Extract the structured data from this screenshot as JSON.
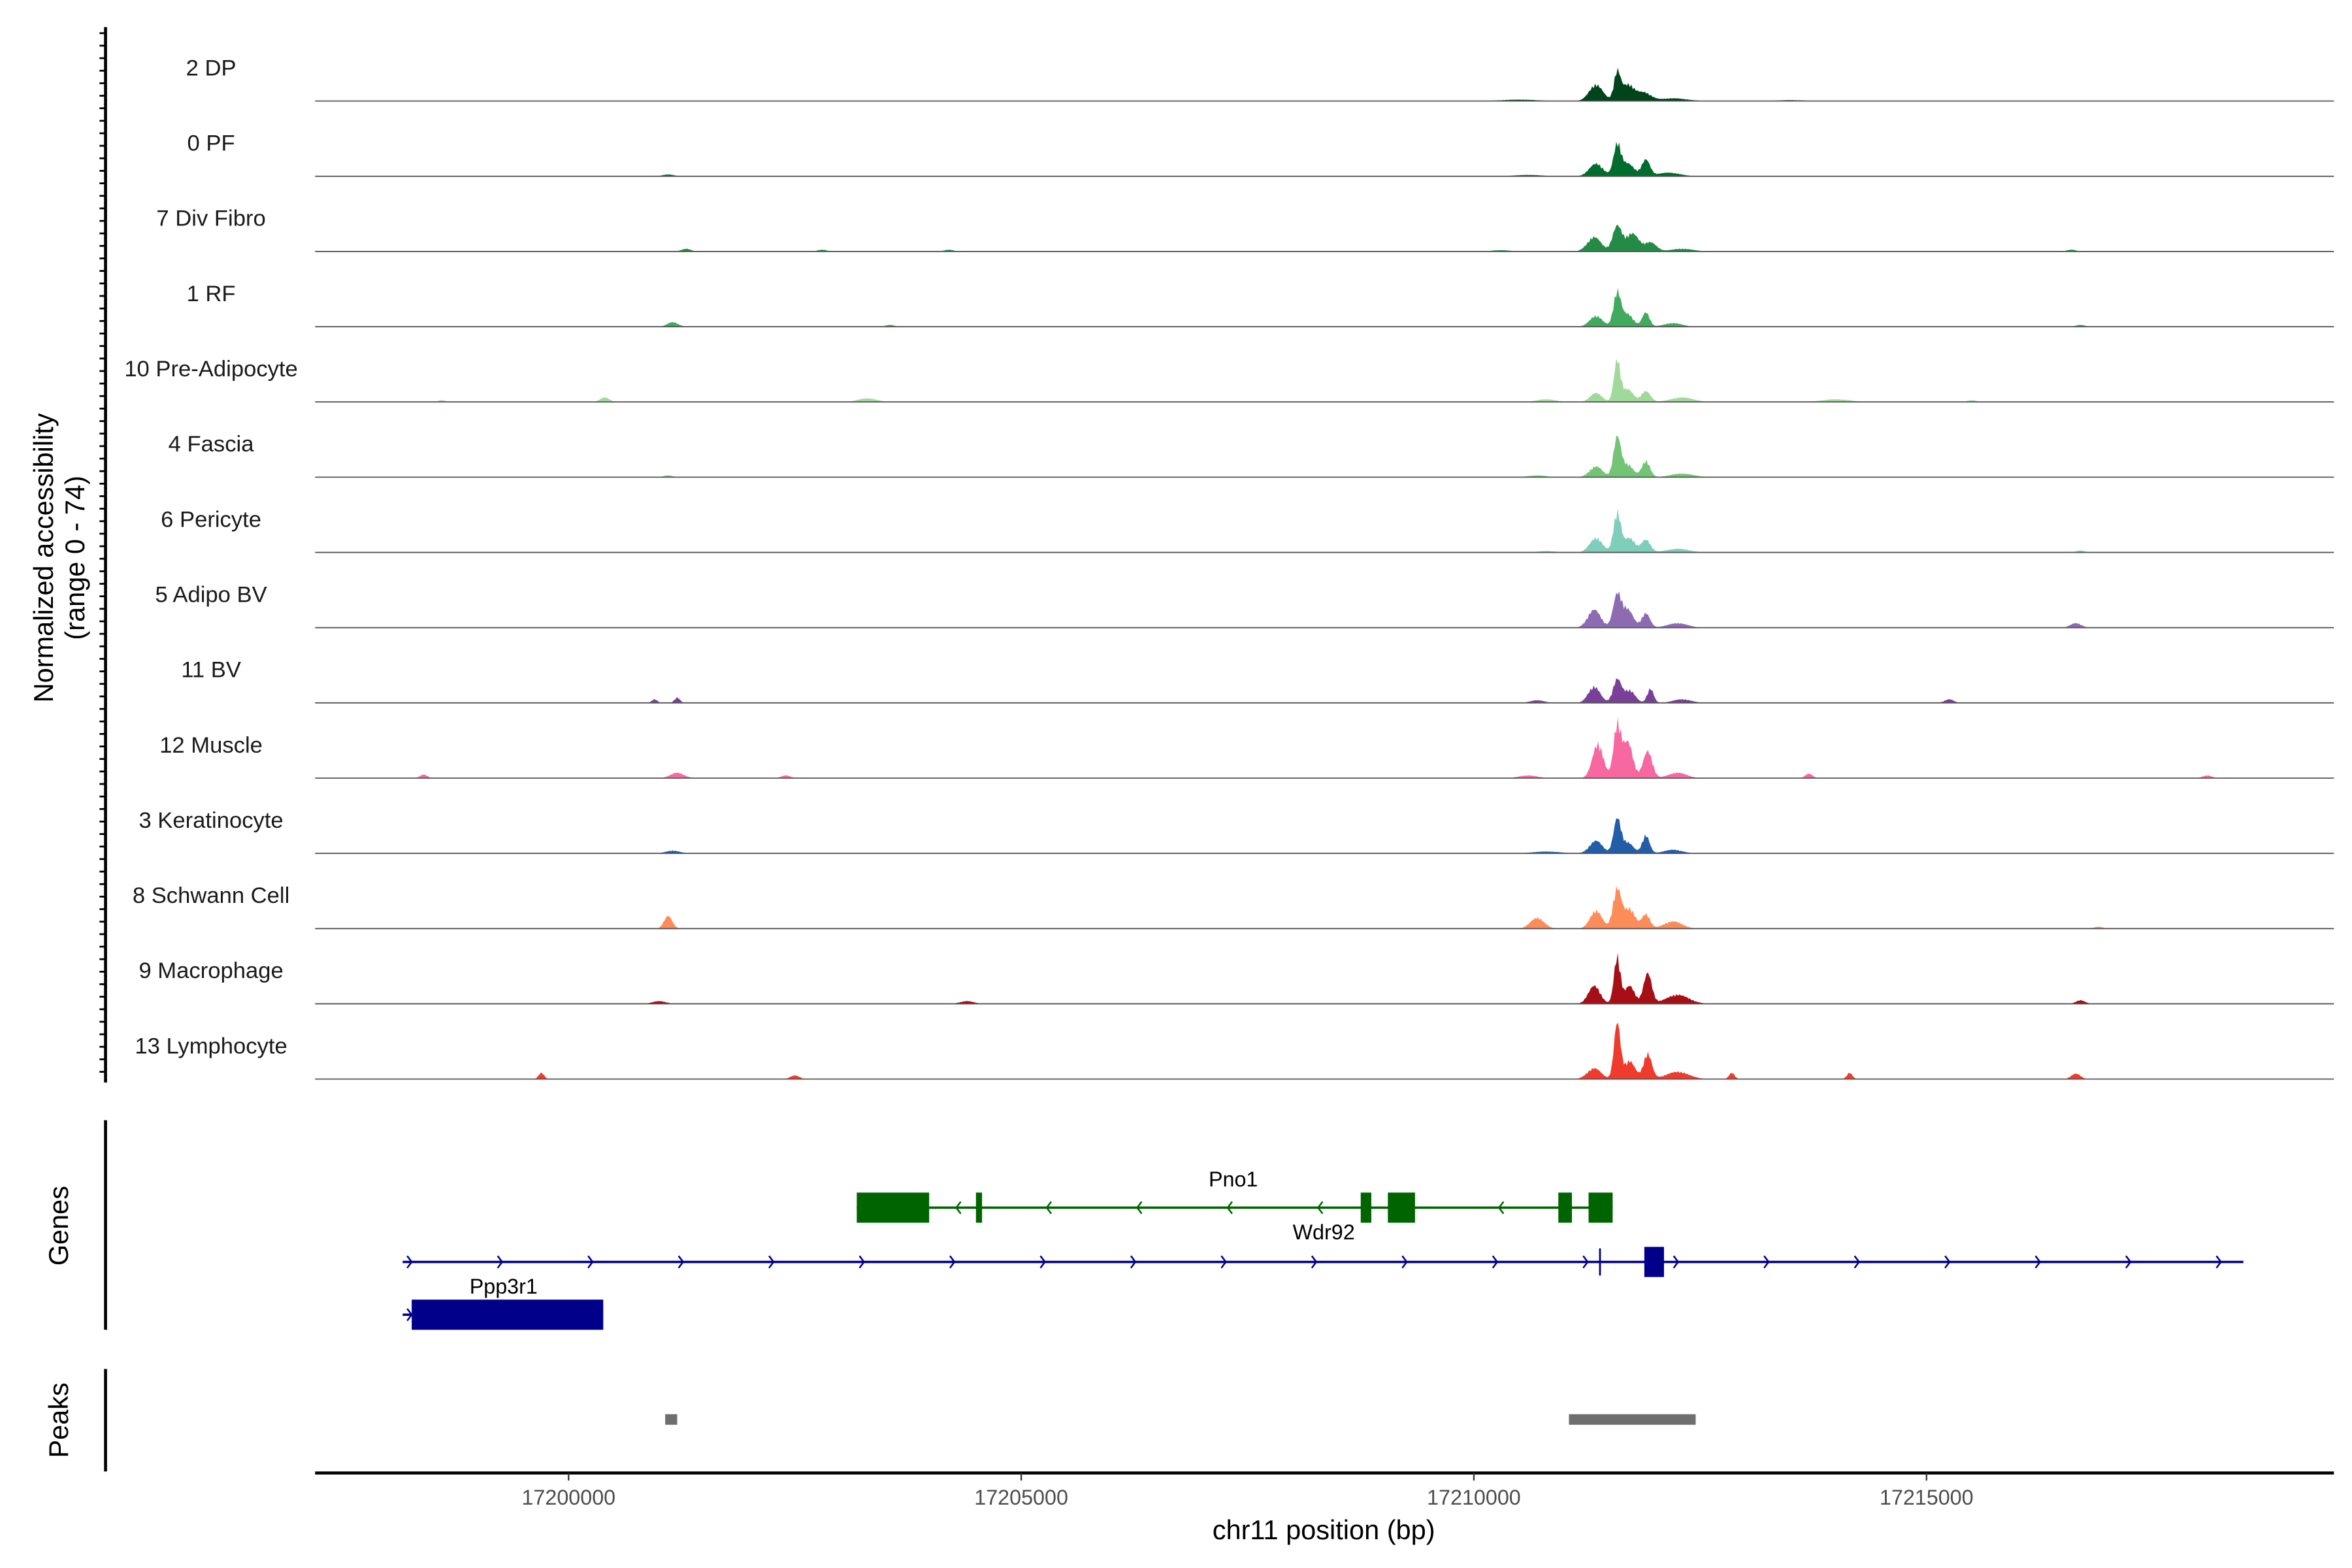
{
  "chart_data": {
    "type": "area",
    "title": "",
    "xlabel": "chr11 position (bp)",
    "ylabel": "Normalized accessibility",
    "ylabel_sub": "(range 0 - 74)",
    "ylim": [
      0,
      74
    ],
    "xlim": [
      17197200,
      17219500
    ],
    "x_ticks": [
      17200000,
      17205000,
      17210000,
      17215000
    ],
    "x_tick_labels": [
      "17200000",
      "17205000",
      "17210000",
      "17215000"
    ],
    "tracks": [
      {
        "name": "2 DP",
        "color": "#00441b",
        "bumps": [
          [
            17211350,
            18,
            150
          ],
          [
            17211583,
            30,
            70
          ],
          [
            17211700,
            18,
            140
          ],
          [
            17211880,
            9,
            150
          ],
          [
            17212200,
            3,
            300
          ],
          [
            17210500,
            1.5,
            400
          ],
          [
            17213500,
            1,
            300
          ]
        ]
      },
      {
        "name": "0 PF",
        "color": "#006d2c",
        "bumps": [
          [
            17211350,
            14,
            150
          ],
          [
            17211583,
            34,
            80
          ],
          [
            17211700,
            14,
            140
          ],
          [
            17211900,
            18,
            90
          ],
          [
            17212150,
            4,
            250
          ],
          [
            17201100,
            2,
            120
          ],
          [
            17210600,
            1.5,
            300
          ]
        ]
      },
      {
        "name": "7 Div Fibro",
        "color": "#238b45",
        "bumps": [
          [
            17211330,
            16,
            150
          ],
          [
            17211583,
            28,
            100
          ],
          [
            17211750,
            20,
            140
          ],
          [
            17211950,
            10,
            130
          ],
          [
            17212300,
            3,
            250
          ],
          [
            17201300,
            3,
            100
          ],
          [
            17202800,
            2,
            100
          ],
          [
            17204200,
            2,
            100
          ],
          [
            17210300,
            1.5,
            200
          ],
          [
            17216600,
            2,
            100
          ]
        ]
      },
      {
        "name": "1 RF",
        "color": "#41ab5d",
        "bumps": [
          [
            17211350,
            12,
            140
          ],
          [
            17211583,
            38,
            80
          ],
          [
            17211700,
            14,
            120
          ],
          [
            17211900,
            16,
            80
          ],
          [
            17212200,
            4,
            200
          ],
          [
            17201150,
            5,
            120
          ],
          [
            17203550,
            2,
            100
          ],
          [
            17216700,
            2,
            100
          ]
        ]
      },
      {
        "name": "10 Pre-Adipocyte",
        "color": "#a1d99b",
        "bumps": [
          [
            17211350,
            10,
            130
          ],
          [
            17211583,
            46,
            70
          ],
          [
            17211700,
            14,
            120
          ],
          [
            17211900,
            12,
            100
          ],
          [
            17212300,
            5,
            250
          ],
          [
            17198600,
            2,
            80
          ],
          [
            17200400,
            5,
            100
          ],
          [
            17203300,
            4,
            200
          ],
          [
            17210800,
            3,
            200
          ],
          [
            17214000,
            3,
            300
          ],
          [
            17215500,
            2,
            100
          ]
        ]
      },
      {
        "name": "4 Fascia",
        "color": "#74c476",
        "bumps": [
          [
            17211350,
            12,
            140
          ],
          [
            17211583,
            44,
            80
          ],
          [
            17211700,
            14,
            120
          ],
          [
            17211900,
            18,
            90
          ],
          [
            17212300,
            4,
            250
          ],
          [
            17201100,
            2,
            100
          ],
          [
            17210700,
            2,
            200
          ]
        ]
      },
      {
        "name": "6 Pericyte",
        "color": "#7fcdbb",
        "bumps": [
          [
            17211350,
            16,
            140
          ],
          [
            17211583,
            44,
            80
          ],
          [
            17211720,
            16,
            120
          ],
          [
            17211900,
            14,
            100
          ],
          [
            17212250,
            4,
            250
          ],
          [
            17210800,
            1.5,
            200
          ],
          [
            17216700,
            2,
            100
          ]
        ]
      },
      {
        "name": "5 Adipo BV",
        "color": "#8c6bb1",
        "bumps": [
          [
            17211330,
            20,
            140
          ],
          [
            17211583,
            36,
            90
          ],
          [
            17211700,
            20,
            120
          ],
          [
            17211900,
            16,
            90
          ],
          [
            17212250,
            5,
            220
          ],
          [
            17216650,
            5,
            120
          ]
        ]
      },
      {
        "name": "11 BV",
        "color": "#7a3f98",
        "bumps": [
          [
            17211330,
            18,
            130
          ],
          [
            17211583,
            26,
            90
          ],
          [
            17211720,
            14,
            120
          ],
          [
            17211950,
            16,
            70
          ],
          [
            17212300,
            4,
            200
          ],
          [
            17200950,
            4,
            60
          ],
          [
            17201200,
            6,
            60
          ],
          [
            17210700,
            3,
            150
          ],
          [
            17215250,
            4,
            100
          ]
        ]
      },
      {
        "name": "12 Muscle",
        "color": "#f768a1",
        "bumps": [
          [
            17211370,
            38,
            120
          ],
          [
            17211583,
            58,
            80
          ],
          [
            17211700,
            40,
            110
          ],
          [
            17211920,
            30,
            100
          ],
          [
            17212250,
            6,
            200
          ],
          [
            17198400,
            4,
            80
          ],
          [
            17201200,
            6,
            150
          ],
          [
            17202400,
            3,
            100
          ],
          [
            17210600,
            3,
            200
          ],
          [
            17213700,
            5,
            80
          ],
          [
            17218100,
            3,
            100
          ]
        ]
      },
      {
        "name": "3 Keratinocyte",
        "color": "#225ea8",
        "bumps": [
          [
            17211350,
            14,
            140
          ],
          [
            17211583,
            38,
            80
          ],
          [
            17211700,
            12,
            120
          ],
          [
            17211900,
            20,
            80
          ],
          [
            17212200,
            4,
            200
          ],
          [
            17201150,
            3,
            150
          ],
          [
            17210800,
            2,
            300
          ]
        ]
      },
      {
        "name": "8 Schwann Cell",
        "color": "#fc8d59",
        "bumps": [
          [
            17210700,
            12,
            150
          ],
          [
            17211350,
            20,
            130
          ],
          [
            17211583,
            44,
            90
          ],
          [
            17211720,
            22,
            120
          ],
          [
            17211900,
            16,
            90
          ],
          [
            17212200,
            8,
            200
          ],
          [
            17201100,
            14,
            90
          ],
          [
            17216900,
            2,
            100
          ]
        ]
      },
      {
        "name": "9 Macrophage",
        "color": "#a50f15",
        "bumps": [
          [
            17211330,
            20,
            130
          ],
          [
            17211583,
            52,
            70
          ],
          [
            17211720,
            20,
            110
          ],
          [
            17211920,
            34,
            90
          ],
          [
            17212250,
            10,
            250
          ],
          [
            17201000,
            3,
            150
          ],
          [
            17204400,
            3,
            150
          ],
          [
            17216700,
            4,
            100
          ]
        ]
      },
      {
        "name": "13 Lymphocyte",
        "color": "#ef3b2c",
        "bumps": [
          [
            17211330,
            12,
            150
          ],
          [
            17211583,
            62,
            70
          ],
          [
            17211720,
            20,
            120
          ],
          [
            17211920,
            28,
            90
          ],
          [
            17212250,
            8,
            250
          ],
          [
            17199700,
            7,
            60
          ],
          [
            17202500,
            4,
            100
          ],
          [
            17212850,
            7,
            60
          ],
          [
            17214150,
            7,
            60
          ],
          [
            17216650,
            6,
            100
          ]
        ]
      }
    ],
    "genes": [
      {
        "name": "Pno1",
        "strand": "-",
        "color": "#006400",
        "start": 17203183,
        "end": 17211533,
        "exons": [
          [
            17203183,
            17203983
          ],
          [
            17204500,
            17204567
          ],
          [
            17208750,
            17208867
          ],
          [
            17209050,
            17209350
          ],
          [
            17210933,
            17211083
          ],
          [
            17211267,
            17211533
          ]
        ]
      },
      {
        "name": "Wdr92",
        "strand": "+",
        "color": "#00008b",
        "start": 17198167,
        "end": 17218500,
        "exons": [
          [
            17211383,
            17211400
          ],
          [
            17211883,
            17212100
          ]
        ]
      },
      {
        "name": "Ppp3r1",
        "strand": "+",
        "color": "#00008b",
        "start": 17198167,
        "end": 17200383,
        "exons": [
          [
            17198267,
            17200383
          ]
        ]
      }
    ],
    "gene_track_label": "Genes",
    "peaks_track_label": "Peaks",
    "peaks": [
      [
        17201067,
        17201200
      ],
      [
        17211050,
        17212450
      ]
    ],
    "peak_color": "#6e6e6e"
  }
}
